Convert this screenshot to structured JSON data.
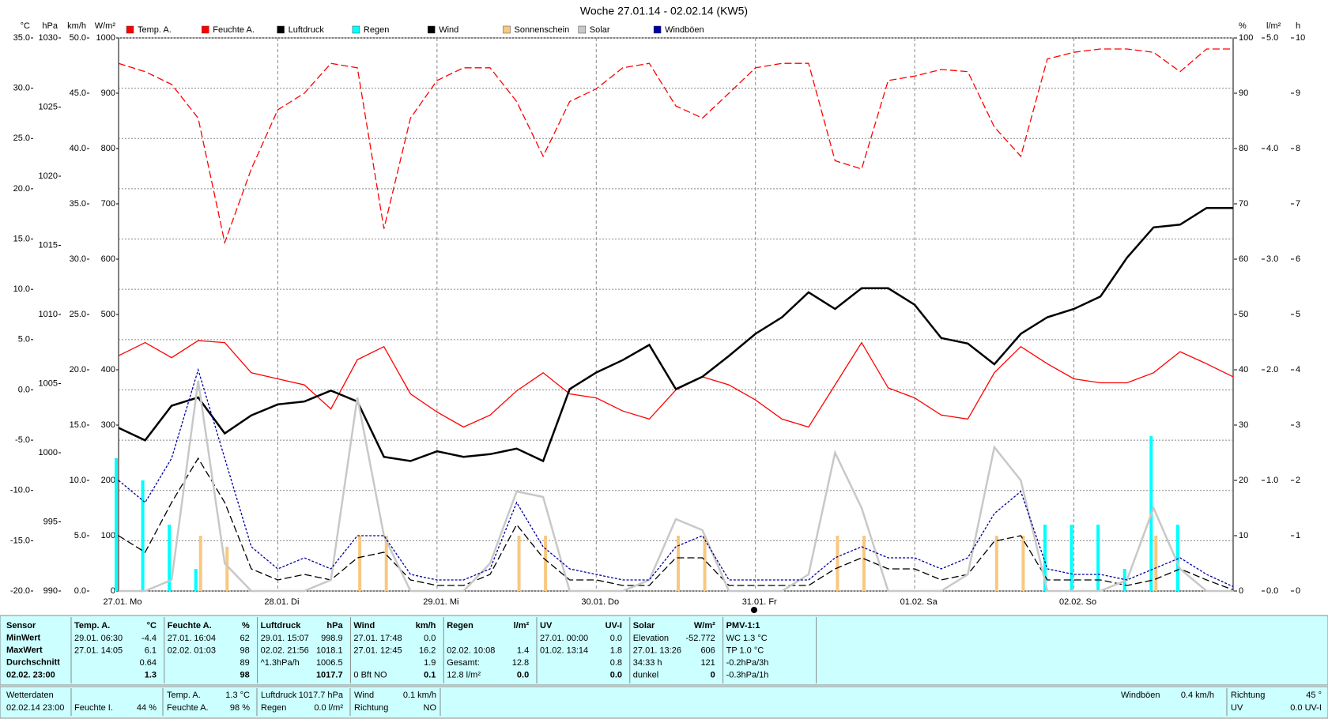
{
  "chart_data": {
    "type": "line",
    "title": "Woche 27.01.14 - 02.02.14 (KW5)",
    "categories": [
      "27.01. Mo",
      null,
      null,
      null,
      null,
      null,
      "28.01. Di",
      null,
      null,
      null,
      null,
      null,
      "29.01. Mi",
      null,
      null,
      null,
      null,
      null,
      "30.01. Do",
      null,
      null,
      null,
      null,
      null,
      "31.01. Fr",
      null,
      null,
      null,
      null,
      null,
      "01.02. Sa",
      null,
      null,
      null,
      null,
      null,
      "02.02. So",
      null,
      null,
      null,
      null,
      null,
      null
    ],
    "axes": [
      {
        "unit": "°C",
        "side": "left",
        "color": "#ff0000",
        "grid": true,
        "lim": [
          -20,
          35
        ],
        "ticks": [
          {
            "value": -20,
            "label": "-20.0"
          },
          {
            "value": -15,
            "label": "-15.0"
          },
          {
            "value": -10,
            "label": "-10.0"
          },
          {
            "value": -5,
            "label": "-5.0"
          },
          {
            "value": 0,
            "label": "0.0"
          },
          {
            "value": 5,
            "label": "5.0"
          },
          {
            "value": 10,
            "label": "10.0"
          },
          {
            "value": 15,
            "label": "15.0"
          },
          {
            "value": 20,
            "label": "20.0"
          },
          {
            "value": 25,
            "label": "25.0"
          },
          {
            "value": 30,
            "label": "30.0"
          },
          {
            "value": 35,
            "label": "35.0"
          }
        ]
      },
      {
        "unit": "hPa",
        "side": "left",
        "color": "#000000",
        "grid": false,
        "lim": [
          990,
          1030
        ],
        "ticks": [
          990,
          995,
          1000,
          1005,
          1010,
          1015,
          1020,
          1025,
          1030
        ]
      },
      {
        "unit": "km/h",
        "side": "left",
        "color": "#000000",
        "grid": false,
        "lim": [
          0,
          50
        ],
        "ticks": [
          {
            "value": 0,
            "label": "0.0"
          },
          {
            "value": 5,
            "label": "5.0"
          },
          {
            "value": 10,
            "label": "10.0"
          },
          {
            "value": 15,
            "label": "15.0"
          },
          {
            "value": 20,
            "label": "20.0"
          },
          {
            "value": 25,
            "label": "25.0"
          },
          {
            "value": 30,
            "label": "30.0"
          },
          {
            "value": 35,
            "label": "35.0"
          },
          {
            "value": 40,
            "label": "40.0"
          },
          {
            "value": 45,
            "label": "45.0"
          },
          {
            "value": 50,
            "label": "50.0"
          }
        ]
      },
      {
        "unit": "W/m²",
        "side": "left",
        "color": "#c8c8c8",
        "grid": false,
        "lim": [
          0,
          1000
        ],
        "ticks": [
          0,
          100,
          200,
          300,
          400,
          500,
          600,
          700,
          800,
          900,
          1000
        ]
      },
      {
        "unit": "%",
        "side": "right",
        "color": "#ff0000",
        "grid": false,
        "lim": [
          0,
          100
        ],
        "ticks": [
          0,
          10,
          20,
          30,
          40,
          50,
          60,
          70,
          80,
          90,
          100
        ]
      },
      {
        "unit": "l/m²",
        "side": "right",
        "color": "#00d8d8",
        "grid": false,
        "lim": [
          0,
          5
        ],
        "ticks": [
          {
            "value": 0,
            "label": "0.0"
          },
          {
            "value": 1,
            "label": "1.0"
          },
          {
            "value": 2,
            "label": "2.0"
          },
          {
            "value": 3,
            "label": "3.0"
          },
          {
            "value": 4,
            "label": "4.0"
          },
          {
            "value": 5,
            "label": "5.0"
          }
        ]
      },
      {
        "unit": "h",
        "side": "right",
        "color": "#e8c890",
        "grid": false,
        "lim": [
          0,
          10
        ],
        "ticks": [
          0,
          1,
          2,
          3,
          4,
          5,
          6,
          7,
          8,
          9,
          10
        ]
      }
    ],
    "series": [
      {
        "name": "Temp. A.",
        "color": "#ff0000",
        "axis": "°C",
        "kind": "line",
        "dash": "solid",
        "values": [
          3.4,
          4.7,
          3.2,
          4.9,
          4.7,
          1.7,
          1.1,
          0.5,
          -1.9,
          3.0,
          4.3,
          -0.4,
          -2.2,
          -3.7,
          -2.5,
          -0.1,
          1.7,
          -0.4,
          -0.8,
          -2.1,
          -2.9,
          0.0,
          1.3,
          0.5,
          -1.0,
          -2.9,
          -3.7,
          0.5,
          4.7,
          0.2,
          -0.8,
          -2.5,
          -2.9,
          1.7,
          4.3,
          2.6,
          1.1,
          0.7,
          0.7,
          1.7,
          3.8,
          2.6,
          1.3
        ]
      },
      {
        "name": "Feuchte A.",
        "color": "#ff0000",
        "axis": "%",
        "kind": "line",
        "dash": "dashed",
        "values": [
          95.4,
          93.9,
          91.6,
          85.5,
          63,
          76.3,
          87,
          90,
          95.4,
          94.6,
          65.5,
          85.5,
          92.3,
          94.6,
          94.6,
          88.5,
          78.6,
          88.5,
          90.8,
          94.6,
          95.4,
          87.7,
          85.5,
          90,
          94.6,
          95.4,
          95.4,
          77.8,
          76.3,
          92.3,
          93.1,
          94.3,
          93.9,
          83.9,
          78.6,
          96.2,
          97.4,
          98,
          98,
          97.4,
          93.9,
          98,
          98
        ]
      },
      {
        "name": "Luftdruck",
        "color": "#000000",
        "axis": "hPa",
        "kind": "line",
        "dash": "solid",
        "values": [
          1001.8,
          1000.9,
          1003.4,
          1004.0,
          1001.4,
          1002.7,
          1003.5,
          1003.7,
          1004.5,
          1003.7,
          999.7,
          999.4,
          1000.1,
          999.7,
          999.9,
          1000.3,
          999.4,
          1004.6,
          1005.8,
          1006.7,
          1007.8,
          1004.6,
          1005.5,
          1007.0,
          1008.6,
          1009.8,
          1011.6,
          1010.4,
          1011.9,
          1011.9,
          1010.7,
          1008.3,
          1007.9,
          1006.4,
          1008.6,
          1009.8,
          1010.4,
          1011.3,
          1014.1,
          1016.3,
          1016.5,
          1017.7,
          1017.7
        ]
      },
      {
        "name": "Regen",
        "color": "#00ffff",
        "axis": "l/m²",
        "kind": "bar",
        "values": [
          1.2,
          1.0,
          0.6,
          0.2,
          0,
          0,
          0,
          0,
          0,
          0,
          0,
          0,
          0,
          0,
          0,
          0,
          0,
          0,
          0,
          0,
          0,
          0,
          0,
          0,
          0,
          0,
          0,
          0,
          0,
          0,
          0,
          0,
          0,
          0,
          0,
          0.6,
          0.6,
          0.6,
          0.2,
          1.4,
          0.6,
          0,
          0
        ]
      },
      {
        "name": "Wind",
        "color": "#000000",
        "axis": "km/h",
        "kind": "line",
        "dash": "dashed",
        "values": [
          5,
          3.5,
          8,
          12,
          8,
          2,
          1,
          1.5,
          1,
          3,
          3.5,
          1,
          0.5,
          0.5,
          1.5,
          6,
          3,
          1,
          1,
          0.5,
          0.5,
          3,
          3,
          0.5,
          0.5,
          0.5,
          0.5,
          2,
          3,
          2,
          2,
          1,
          1.5,
          4.5,
          5,
          1,
          1,
          1,
          0.5,
          1,
          2,
          1,
          0.1
        ]
      },
      {
        "name": "Sonnenschein",
        "color": "#f8c880",
        "axis": "h",
        "kind": "bar",
        "values": [
          0,
          0,
          0,
          1,
          0.8,
          0,
          0,
          0,
          0,
          1,
          1,
          0,
          0,
          0,
          0,
          1,
          1,
          0,
          0,
          0,
          0,
          1,
          1,
          0,
          0,
          0,
          0,
          1,
          1,
          0,
          0,
          0,
          0,
          1,
          1,
          0,
          0,
          0,
          0,
          1,
          0,
          0,
          0
        ]
      },
      {
        "name": "Solar",
        "color": "#c8c8c8",
        "axis": "W/m²",
        "kind": "line",
        "dash": "solid",
        "values": [
          0,
          0,
          20,
          380,
          50,
          0,
          0,
          0,
          20,
          350,
          100,
          0,
          0,
          0,
          50,
          180,
          170,
          0,
          0,
          0,
          20,
          130,
          110,
          0,
          0,
          0,
          30,
          250,
          150,
          0,
          0,
          0,
          30,
          260,
          200,
          0,
          0,
          0,
          20,
          150,
          40,
          0,
          0
        ]
      },
      {
        "name": "Windböen",
        "color": "#0000a0",
        "axis": "km/h",
        "kind": "line",
        "dash": "dotted",
        "values": [
          10,
          8,
          12,
          20,
          12,
          4,
          2,
          3,
          2,
          5,
          5,
          1.5,
          1,
          1,
          2,
          8,
          4,
          2,
          1.5,
          1,
          1,
          4,
          5,
          1,
          1,
          1,
          1,
          3,
          4,
          3,
          3,
          2,
          3,
          7,
          9,
          2,
          1.5,
          1.5,
          1,
          2,
          3,
          1.5,
          0.4
        ]
      }
    ]
  },
  "table": {
    "row_labels": [
      "Sensor",
      "MinWert",
      "MaxWert",
      "Durchschnitt",
      "02.02. 23:00"
    ],
    "columns": [
      {
        "header": "Temp. A.",
        "unit": "°C",
        "rows": [
          [
            "29.01. 06:30",
            "-4.4"
          ],
          [
            "27.01. 14:05",
            "6.1"
          ],
          [
            null,
            "0.64"
          ],
          [
            null,
            "1.3"
          ]
        ]
      },
      {
        "header": "Feuchte A.",
        "unit": "%",
        "rows": [
          [
            "27.01. 16:04",
            "62"
          ],
          [
            "02.02. 01:03",
            "98"
          ],
          [
            null,
            "89"
          ],
          [
            null,
            "98"
          ]
        ]
      },
      {
        "header": "Luftdruck",
        "unit": "hPa",
        "rows": [
          [
            "29.01. 15:07",
            "998.9"
          ],
          [
            "02.02. 21:56",
            "1018.1"
          ],
          [
            "^1.3hPa/h",
            "1006.5"
          ],
          [
            null,
            "1017.7"
          ]
        ]
      },
      {
        "header": "Wind",
        "unit": "km/h",
        "rows": [
          [
            "27.01. 17:48",
            "0.0"
          ],
          [
            "27.01. 12:45",
            "16.2"
          ],
          [
            null,
            "1.9"
          ],
          [
            "0 Bft NO",
            "0.1"
          ]
        ]
      },
      {
        "header": "Regen",
        "unit": "l/m²",
        "rows": [
          [
            null,
            null
          ],
          [
            "02.02. 10:08",
            "1.4"
          ],
          [
            "Gesamt:",
            "12.8"
          ],
          [
            "12.8 l/m²",
            "0.0"
          ]
        ]
      },
      {
        "header": "UV",
        "unit": "UV-I",
        "rows": [
          [
            "27.01. 00:00",
            "0.0"
          ],
          [
            "01.02. 13:14",
            "1.8"
          ],
          [
            null,
            "0.8"
          ],
          [
            null,
            "0.0"
          ]
        ]
      },
      {
        "header": "Solar",
        "unit": "W/m²",
        "rows": [
          [
            "Elevation",
            "-52.772"
          ],
          [
            "27.01. 13:26",
            "606"
          ],
          [
            "34:33 h",
            "121"
          ],
          [
            "dunkel",
            "0"
          ]
        ]
      },
      {
        "header": "PMV-1:1",
        "unit": null,
        "rows": [
          [
            "WC 1.3 °C",
            null
          ],
          [
            "TP 1.0 °C",
            null
          ],
          [
            "-0.2hPa/3h",
            null
          ],
          [
            "-0.3hPa/1h",
            null
          ]
        ]
      }
    ]
  },
  "status_bar": {
    "cells": [
      {
        "label": "Wetterdaten",
        "value": "02.02.14 23:00"
      },
      {
        "label": "Feuchte I.",
        "value": "44 %"
      },
      {
        "label": "Temp. A.",
        "value": "1.3 °C"
      },
      {
        "label": "Feuchte A.",
        "value": "98 %"
      },
      {
        "label": "Luftdruck",
        "value": "1017.7 hPa"
      },
      {
        "label": "Regen",
        "value": "0.0 l/m²"
      },
      {
        "label": "Wind",
        "value": "0.1 km/h"
      },
      {
        "label": "Richtung",
        "value": "NO"
      },
      {
        "label": "Windböen",
        "value": "0.4 km/h"
      },
      {
        "label": "Richtung",
        "value": "45 °"
      },
      {
        "label": "UV",
        "value": "0.0 UV-I"
      }
    ]
  }
}
